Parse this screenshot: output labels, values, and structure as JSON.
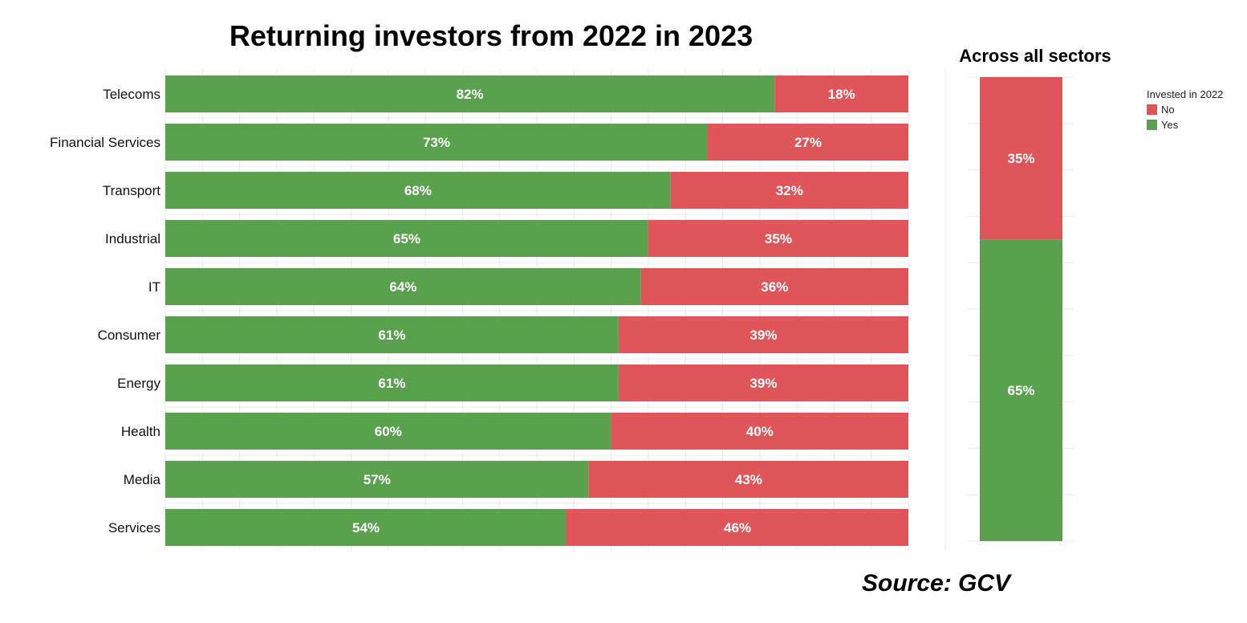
{
  "colors": {
    "yes": "#5aa14e",
    "no": "#e0555a"
  },
  "legend": {
    "title": "Invested in 2022",
    "items": [
      "No",
      "Yes"
    ]
  },
  "source": "Source: GCV",
  "chart_data": [
    {
      "type": "bar",
      "orientation": "horizontal",
      "stacked": true,
      "title": "Returning investors from 2022 in 2023",
      "categories": [
        "Telecoms",
        "Financial Services",
        "Transport",
        "Industrial",
        "IT",
        "Consumer",
        "Energy",
        "Health",
        "Media",
        "Services"
      ],
      "series": [
        {
          "name": "Yes",
          "values": [
            82,
            73,
            68,
            65,
            64,
            61,
            61,
            60,
            57,
            54
          ],
          "labels": [
            "82%",
            "73%",
            "68%",
            "65%",
            "64%",
            "61%",
            "61%",
            "60%",
            "57%",
            "54%"
          ]
        },
        {
          "name": "No",
          "values": [
            18,
            27,
            32,
            35,
            36,
            39,
            39,
            40,
            43,
            46
          ],
          "labels": [
            "18%",
            "27%",
            "32%",
            "35%",
            "36%",
            "39%",
            "39%",
            "40%",
            "43%",
            "46%"
          ]
        }
      ],
      "xlim": [
        0,
        100
      ],
      "grid": true
    },
    {
      "type": "bar",
      "orientation": "vertical",
      "stacked": true,
      "title": "Across all sectors",
      "series": [
        {
          "name": "No",
          "value": 35,
          "label": "35%"
        },
        {
          "name": "Yes",
          "value": 65,
          "label": "65%"
        }
      ],
      "ylim": [
        0,
        100
      ],
      "grid": true
    }
  ]
}
